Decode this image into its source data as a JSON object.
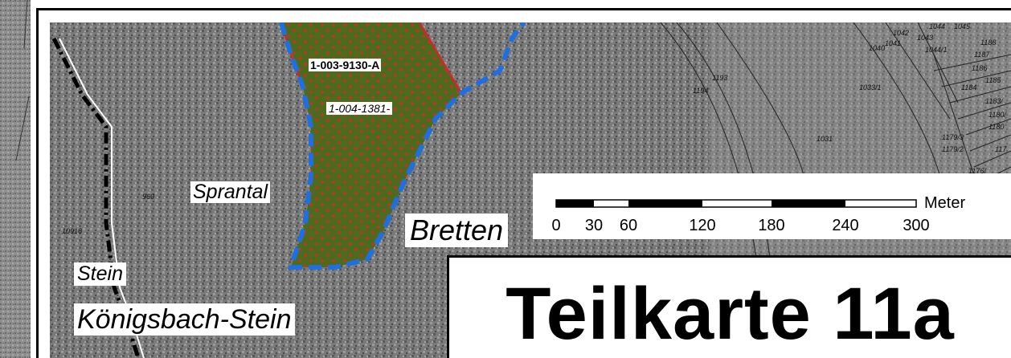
{
  "map": {
    "title": "Teilkarte 11a",
    "area_labels": {
      "area_1": "1-003-9130-A",
      "area_2": "1-004-1381-"
    },
    "place_labels": {
      "sprantal": "Sprantal",
      "bretten": "Bretten",
      "stein": "Stein",
      "koenigsbach_stein": "Königsbach-Stein"
    },
    "parcel_numbers": [
      "960",
      "10916",
      "1193",
      "1194",
      "1031",
      "1033/1",
      "1040",
      "1041",
      "1042",
      "1043",
      "1044",
      "1045",
      "1044/1",
      "1188",
      "1187",
      "1186",
      "1185",
      "1184",
      "1183/",
      "1180/",
      "1180",
      "1179/3",
      "1179/2",
      "117",
      "1176/"
    ],
    "scale_bar": {
      "unit": "Meter",
      "ticks": [
        "0",
        "30",
        "60",
        "120",
        "180",
        "240",
        "300"
      ]
    },
    "colors": {
      "protected_area_fill": "#4f6a1c",
      "dot_color": "#e0262a",
      "boundary_dash": "#1f6fe0",
      "red_outline": "#d9232a",
      "aerial_gray": "#7b7b7b"
    }
  }
}
